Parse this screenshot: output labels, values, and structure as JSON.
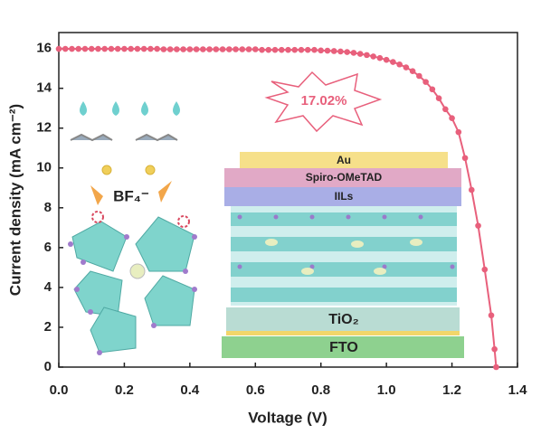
{
  "chart_data": {
    "type": "line",
    "xlabel": "Voltage (V)",
    "ylabel": "Current density (mA cm⁻²)",
    "x": [
      0,
      0.02,
      0.04,
      0.06,
      0.08,
      0.1,
      0.12,
      0.14,
      0.16,
      0.18,
      0.2,
      0.22,
      0.24,
      0.26,
      0.28,
      0.3,
      0.32,
      0.34,
      0.36,
      0.38,
      0.4,
      0.42,
      0.44,
      0.46,
      0.48,
      0.5,
      0.52,
      0.54,
      0.56,
      0.58,
      0.6,
      0.62,
      0.64,
      0.66,
      0.68,
      0.7,
      0.72,
      0.74,
      0.76,
      0.78,
      0.8,
      0.82,
      0.84,
      0.86,
      0.88,
      0.9,
      0.92,
      0.94,
      0.96,
      0.98,
      1.0,
      1.02,
      1.04,
      1.06,
      1.08,
      1.1,
      1.12,
      1.14,
      1.16,
      1.18,
      1.2,
      1.22,
      1.24,
      1.26,
      1.28,
      1.3,
      1.32,
      1.33,
      1.335
    ],
    "series": [
      {
        "name": null,
        "color": "#e8607c",
        "values": [
          15.98,
          15.98,
          15.98,
          15.98,
          15.98,
          15.98,
          15.98,
          15.98,
          15.98,
          15.98,
          15.98,
          15.98,
          15.98,
          15.98,
          15.98,
          15.98,
          15.96,
          15.96,
          15.96,
          15.96,
          15.96,
          15.96,
          15.96,
          15.96,
          15.96,
          15.96,
          15.96,
          15.96,
          15.96,
          15.96,
          15.96,
          15.93,
          15.93,
          15.93,
          15.93,
          15.93,
          15.93,
          15.93,
          15.93,
          15.93,
          15.9,
          15.89,
          15.87,
          15.85,
          15.82,
          15.78,
          15.73,
          15.67,
          15.6,
          15.52,
          15.43,
          15.32,
          15.2,
          15.05,
          14.86,
          14.62,
          14.32,
          13.95,
          13.5,
          12.95,
          12.5,
          11.8,
          10.5,
          8.9,
          7.1,
          4.9,
          2.6,
          0.9,
          0
        ]
      }
    ],
    "xlim": [
      0,
      1.4
    ],
    "ylim": [
      0,
      16.8
    ],
    "xticks": [
      {
        "value": 0,
        "label": "0.0"
      },
      0.2,
      0.4,
      0.6,
      0.8,
      {
        "value": 1,
        "label": "1.0"
      },
      1.2,
      1.4
    ],
    "yticks": [
      0,
      2,
      4,
      6,
      8,
      10,
      12,
      14,
      16
    ],
    "grid": false,
    "annotations": [
      "17.02%",
      "Au",
      "Spiro-OMeTAD",
      "IILs",
      "TiO₂",
      "FTO",
      "BF₄⁻"
    ]
  }
}
